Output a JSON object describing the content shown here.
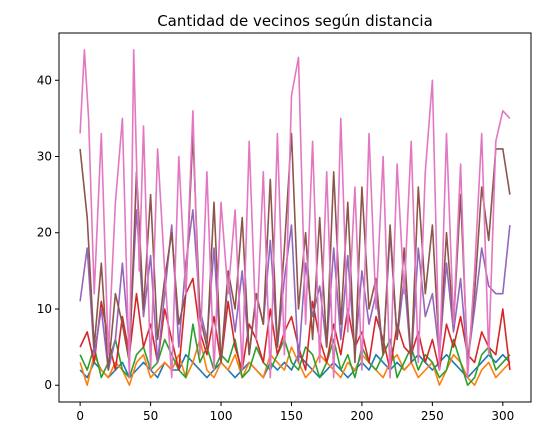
{
  "chart_data": {
    "type": "line",
    "title": "Cantidad de vecinos según distancia",
    "xlabel": "",
    "ylabel": "",
    "xlim": [
      -15,
      320
    ],
    "ylim": [
      -2.2,
      46.2
    ],
    "xticks": [
      0,
      50,
      100,
      150,
      200,
      250,
      300
    ],
    "yticks": [
      0,
      10,
      20,
      30,
      40
    ],
    "xtick_labels": [
      "0",
      "50",
      "100",
      "150",
      "200",
      "250",
      "300"
    ],
    "ytick_labels": [
      "0",
      "10",
      "20",
      "30",
      "40"
    ],
    "grid": false,
    "legend": false,
    "series": [
      {
        "color": "#1f77b4",
        "x": [
          0,
          5,
          10,
          15,
          20,
          25,
          30,
          35,
          40,
          45,
          50,
          55,
          60,
          65,
          70,
          75,
          80,
          85,
          90,
          95,
          100,
          105,
          110,
          115,
          120,
          125,
          130,
          135,
          140,
          145,
          150,
          155,
          160,
          165,
          170,
          175,
          180,
          185,
          190,
          195,
          200,
          205,
          210,
          215,
          220,
          225,
          230,
          235,
          240,
          245,
          250,
          255,
          260,
          265,
          270,
          275,
          280,
          285,
          290,
          295,
          300,
          305
        ],
        "values": [
          2,
          1,
          3,
          2,
          1,
          2,
          3,
          1,
          2,
          3,
          2,
          1,
          3,
          2,
          2,
          4,
          3,
          2,
          1,
          2,
          3,
          2,
          1,
          2,
          3,
          2,
          1,
          3,
          2,
          3,
          2,
          4,
          3,
          2,
          1,
          2,
          3,
          2,
          1,
          2,
          3,
          2,
          4,
          3,
          2,
          3,
          2,
          3,
          4,
          3,
          2,
          3,
          4,
          3,
          2,
          1,
          2,
          3,
          4,
          3,
          4,
          3
        ]
      },
      {
        "color": "#ff7f0e",
        "x": [
          0,
          5,
          10,
          15,
          20,
          25,
          30,
          35,
          40,
          45,
          50,
          55,
          60,
          65,
          70,
          75,
          80,
          85,
          90,
          95,
          100,
          105,
          110,
          115,
          120,
          125,
          130,
          135,
          140,
          145,
          150,
          155,
          160,
          165,
          170,
          175,
          180,
          185,
          190,
          195,
          200,
          205,
          210,
          215,
          220,
          225,
          230,
          235,
          240,
          245,
          250,
          255,
          260,
          265,
          270,
          275,
          280,
          285,
          290,
          295,
          300,
          305
        ],
        "values": [
          3,
          0,
          4,
          2,
          1,
          3,
          2,
          0,
          3,
          4,
          1,
          2,
          3,
          2,
          4,
          1,
          3,
          6,
          2,
          1,
          3,
          2,
          4,
          1,
          3,
          2,
          1,
          4,
          3,
          2,
          5,
          3,
          1,
          2,
          4,
          3,
          2,
          1,
          3,
          2,
          4,
          3,
          2,
          1,
          3,
          4,
          2,
          3,
          1,
          2,
          3,
          0,
          2,
          4,
          3,
          1,
          0,
          2,
          3,
          1,
          2,
          3
        ]
      },
      {
        "color": "#2ca02c",
        "x": [
          0,
          5,
          10,
          15,
          20,
          25,
          30,
          35,
          40,
          45,
          50,
          55,
          60,
          65,
          70,
          75,
          80,
          85,
          90,
          95,
          100,
          105,
          110,
          115,
          120,
          125,
          130,
          135,
          140,
          145,
          150,
          155,
          160,
          165,
          170,
          175,
          180,
          185,
          190,
          195,
          200,
          205,
          210,
          215,
          220,
          225,
          230,
          235,
          240,
          245,
          250,
          255,
          260,
          265,
          270,
          275,
          280,
          285,
          290,
          295,
          300,
          305
        ],
        "values": [
          4,
          2,
          5,
          1,
          3,
          6,
          2,
          1,
          4,
          5,
          2,
          3,
          6,
          4,
          2,
          1,
          8,
          3,
          5,
          2,
          4,
          3,
          6,
          1,
          2,
          5,
          3,
          2,
          4,
          6,
          3,
          2,
          5,
          4,
          1,
          3,
          6,
          2,
          4,
          1,
          5,
          3,
          2,
          4,
          6,
          1,
          3,
          5,
          2,
          4,
          3,
          1,
          2,
          6,
          3,
          0,
          1,
          4,
          5,
          2,
          3,
          4
        ]
      },
      {
        "color": "#d62728",
        "x": [
          0,
          5,
          10,
          15,
          20,
          25,
          30,
          35,
          40,
          45,
          50,
          55,
          60,
          65,
          70,
          75,
          80,
          85,
          90,
          95,
          100,
          105,
          110,
          115,
          120,
          125,
          130,
          135,
          140,
          145,
          150,
          155,
          160,
          165,
          170,
          175,
          180,
          185,
          190,
          195,
          200,
          205,
          210,
          215,
          220,
          225,
          230,
          235,
          240,
          245,
          250,
          255,
          260,
          265,
          270,
          275,
          280,
          285,
          290,
          295,
          300,
          305
        ],
        "values": [
          5,
          7,
          3,
          11,
          6,
          2,
          9,
          4,
          12,
          5,
          8,
          3,
          10,
          6,
          2,
          12,
          14,
          7,
          4,
          9,
          3,
          11,
          5,
          2,
          8,
          6,
          3,
          10,
          4,
          7,
          9,
          5,
          2,
          11,
          6,
          3,
          8,
          4,
          10,
          5,
          7,
          3,
          9,
          6,
          2,
          8,
          5,
          4,
          7,
          3,
          6,
          2,
          8,
          5,
          9,
          4,
          3,
          7,
          5,
          4,
          10,
          2
        ]
      },
      {
        "color": "#9467bd",
        "x": [
          0,
          5,
          10,
          15,
          20,
          25,
          30,
          35,
          40,
          45,
          50,
          55,
          60,
          65,
          70,
          75,
          80,
          85,
          90,
          95,
          100,
          105,
          110,
          115,
          120,
          125,
          130,
          135,
          140,
          145,
          150,
          155,
          160,
          165,
          170,
          175,
          180,
          185,
          190,
          195,
          200,
          205,
          210,
          215,
          220,
          225,
          230,
          235,
          240,
          245,
          250,
          255,
          260,
          265,
          270,
          275,
          280,
          285,
          290,
          295,
          300,
          305
        ],
        "values": [
          11,
          18,
          4,
          10,
          2,
          6,
          16,
          5,
          23,
          9,
          17,
          3,
          12,
          21,
          5,
          16,
          23,
          10,
          6,
          18,
          3,
          14,
          7,
          15,
          4,
          12,
          8,
          19,
          5,
          14,
          21,
          3,
          16,
          9,
          13,
          5,
          18,
          6,
          17,
          4,
          15,
          8,
          12,
          4,
          20,
          6,
          14,
          3,
          18,
          9,
          12,
          4,
          16,
          7,
          14,
          3,
          10,
          18,
          13,
          12,
          12,
          21
        ]
      },
      {
        "color": "#8c564b",
        "x": [
          0,
          5,
          10,
          15,
          20,
          25,
          30,
          35,
          40,
          45,
          50,
          55,
          60,
          65,
          70,
          75,
          80,
          85,
          90,
          95,
          100,
          105,
          110,
          115,
          120,
          125,
          130,
          135,
          140,
          145,
          150,
          155,
          160,
          165,
          170,
          175,
          180,
          185,
          190,
          195,
          200,
          205,
          210,
          215,
          220,
          225,
          230,
          235,
          240,
          245,
          250,
          255,
          260,
          265,
          270,
          275,
          280,
          285,
          290,
          295,
          300,
          305
        ],
        "values": [
          31,
          22,
          5,
          16,
          2,
          12,
          8,
          3,
          28,
          10,
          25,
          6,
          14,
          20,
          8,
          12,
          33,
          9,
          5,
          24,
          3,
          15,
          10,
          22,
          4,
          12,
          8,
          27,
          5,
          18,
          33,
          10,
          20,
          6,
          22,
          5,
          28,
          8,
          24,
          3,
          26,
          10,
          14,
          4,
          21,
          6,
          18,
          3,
          26,
          12,
          21,
          4,
          20,
          8,
          25,
          3,
          12,
          26,
          19,
          31,
          31,
          25
        ]
      },
      {
        "color": "#e377c2",
        "x": [
          0,
          3,
          6,
          10,
          15,
          20,
          25,
          30,
          35,
          38,
          42,
          45,
          50,
          55,
          60,
          65,
          70,
          75,
          80,
          85,
          90,
          95,
          100,
          105,
          110,
          115,
          120,
          125,
          130,
          135,
          140,
          145,
          150,
          155,
          160,
          165,
          170,
          175,
          180,
          185,
          190,
          195,
          200,
          205,
          210,
          215,
          220,
          225,
          230,
          235,
          240,
          245,
          250,
          255,
          260,
          265,
          270,
          275,
          280,
          285,
          290,
          295,
          300,
          305
        ],
        "values": [
          33,
          44,
          35,
          12,
          33,
          4,
          24,
          35,
          1,
          44,
          15,
          34,
          2,
          31,
          15,
          1,
          30,
          12,
          36,
          4,
          28,
          2,
          24,
          12,
          23,
          2,
          32,
          6,
          28,
          1,
          33,
          4,
          38,
          43,
          8,
          32,
          3,
          28,
          1,
          35,
          7,
          26,
          2,
          33,
          10,
          30,
          1,
          29,
          12,
          32,
          3,
          28,
          40,
          2,
          33,
          8,
          29,
          1,
          15,
          33,
          4,
          32,
          36,
          35
        ]
      }
    ]
  }
}
